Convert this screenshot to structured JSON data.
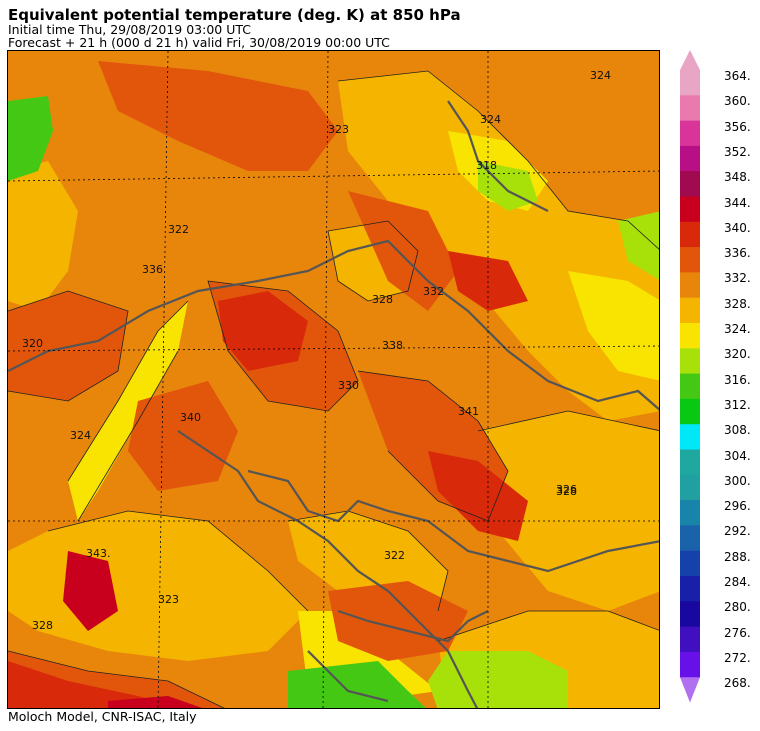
{
  "header": {
    "title": "Equivalent potential temperature (deg. K) at 850 hPa",
    "initial_time": "Initial time  Thu, 29/08/2019  03:00 UTC",
    "forecast": "Forecast  +  21 h  (000 d 21 h)  valid Fri, 30/08/2019 00:00 UTC"
  },
  "footer": {
    "credit": "Moloch Model, CNR-ISAC, Italy"
  },
  "colorbar": {
    "labels": [
      "364.",
      "360.",
      "356.",
      "352.",
      "348.",
      "344.",
      "340.",
      "336.",
      "332.",
      "328.",
      "324.",
      "320.",
      "316.",
      "312.",
      "308.",
      "304.",
      "300.",
      "296.",
      "292.",
      "288.",
      "284.",
      "280.",
      "276.",
      "272.",
      "268."
    ],
    "colors": [
      "#e8a6c4",
      "#e87aae",
      "#d8349a",
      "#b80e86",
      "#a00a4e",
      "#c8001e",
      "#d82a0a",
      "#e2560c",
      "#e8860c",
      "#f4b400",
      "#f8e400",
      "#a8e00a",
      "#44c814",
      "#08c814",
      "#00e8f8",
      "#1ea8a0",
      "#20a0a0",
      "#1884aa",
      "#1a62aa",
      "#1442aa",
      "#1820a8",
      "#1808a0",
      "#4010c0",
      "#6810e8",
      "#b070f0"
    ]
  },
  "map": {
    "contour_labels": [
      "324",
      "318",
      "323",
      "322",
      "328",
      "332",
      "336",
      "340",
      "341",
      "343.",
      "330",
      "326",
      "320",
      "324",
      "328",
      "323",
      "322",
      "338",
      "328",
      "324"
    ]
  }
}
